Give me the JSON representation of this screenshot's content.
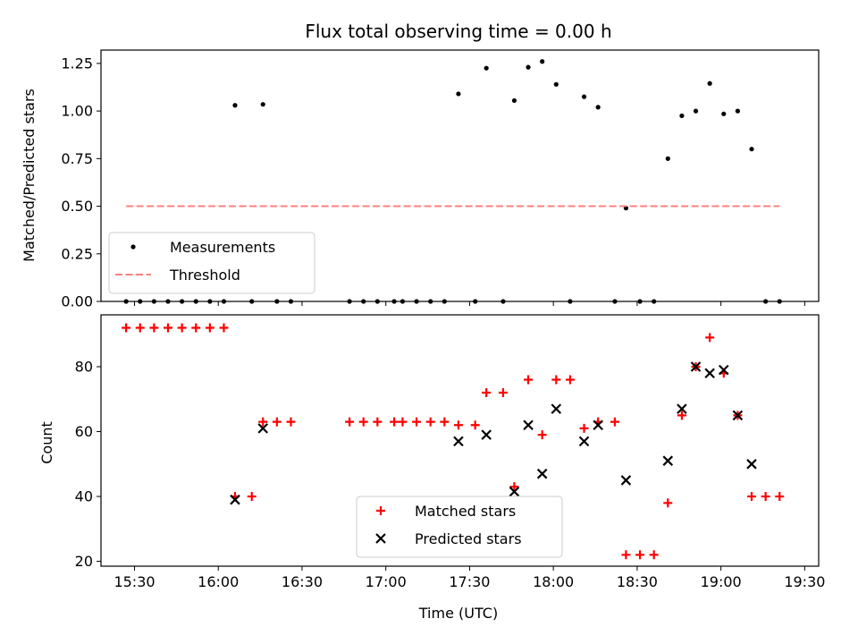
{
  "chart_data": [
    {
      "type": "scatter",
      "title": "Flux total observing time = 0.00 h",
      "ylabel": "Matched/Predicted stars",
      "xlabel": "",
      "ylim": [
        0,
        1.32
      ],
      "yticks": [
        "0.00",
        "0.25",
        "0.50",
        "0.75",
        "1.00",
        "1.25"
      ],
      "grid": false,
      "legend": {
        "placement": "lower-left",
        "entries": [
          "Measurements",
          "Threshold"
        ]
      },
      "series": [
        {
          "name": "Measurements",
          "marker": "dot",
          "color": "#000000",
          "points": [
            [
              "15:27",
              0
            ],
            [
              "15:32",
              0
            ],
            [
              "15:37",
              0
            ],
            [
              "15:42",
              0
            ],
            [
              "15:47",
              0
            ],
            [
              "15:52",
              0
            ],
            [
              "15:57",
              0
            ],
            [
              "16:02",
              0
            ],
            [
              "16:06",
              1.03
            ],
            [
              "16:12",
              0
            ],
            [
              "16:16",
              1.035
            ],
            [
              "16:21",
              0
            ],
            [
              "16:26",
              0
            ],
            [
              "16:47",
              0
            ],
            [
              "16:52",
              0
            ],
            [
              "16:57",
              0
            ],
            [
              "17:03",
              0
            ],
            [
              "17:06",
              0
            ],
            [
              "17:11",
              0
            ],
            [
              "17:16",
              0
            ],
            [
              "17:21",
              0
            ],
            [
              "17:26",
              1.09
            ],
            [
              "17:32",
              0
            ],
            [
              "17:36",
              1.225
            ],
            [
              "17:42",
              0
            ],
            [
              "17:46",
              1.055
            ],
            [
              "17:51",
              1.23
            ],
            [
              "17:56",
              1.26
            ],
            [
              "18:01",
              1.14
            ],
            [
              "18:06",
              0
            ],
            [
              "18:11",
              1.075
            ],
            [
              "18:16",
              1.02
            ],
            [
              "18:22",
              0
            ],
            [
              "18:26",
              0.49
            ],
            [
              "18:31",
              0
            ],
            [
              "18:36",
              0
            ],
            [
              "18:41",
              0.75
            ],
            [
              "18:46",
              0.975
            ],
            [
              "18:51",
              1.0
            ],
            [
              "18:56",
              1.145
            ],
            [
              "19:01",
              0.985
            ],
            [
              "19:06",
              1.0
            ],
            [
              "19:11",
              0.8
            ],
            [
              "19:16",
              0
            ],
            [
              "19:21",
              0
            ]
          ]
        },
        {
          "name": "Threshold",
          "style": "dashed",
          "color": "#ff7f7f",
          "points": [
            [
              "15:27",
              0.5
            ],
            [
              "19:21",
              0.5
            ]
          ]
        }
      ]
    },
    {
      "type": "scatter",
      "title": "",
      "ylabel": "Count",
      "xlabel": "Time (UTC)",
      "ylim": [
        18.5,
        96
      ],
      "yticks": [
        "20",
        "40",
        "60",
        "80"
      ],
      "xticks": [
        "15:30",
        "16:00",
        "16:30",
        "17:00",
        "17:30",
        "18:00",
        "18:30",
        "19:00",
        "19:30"
      ],
      "xlim": [
        "15:18",
        "19:35"
      ],
      "grid": false,
      "legend": {
        "placement": "lower-center",
        "entries": [
          "Matched stars",
          "Predicted stars"
        ]
      },
      "series": [
        {
          "name": "Matched stars",
          "marker": "plus",
          "color": "#ff0000",
          "points": [
            [
              "15:27",
              92
            ],
            [
              "15:32",
              92
            ],
            [
              "15:37",
              92
            ],
            [
              "15:42",
              92
            ],
            [
              "15:47",
              92
            ],
            [
              "15:52",
              92
            ],
            [
              "15:57",
              92
            ],
            [
              "16:02",
              92
            ],
            [
              "16:06",
              40
            ],
            [
              "16:12",
              40
            ],
            [
              "16:16",
              63
            ],
            [
              "16:21",
              63
            ],
            [
              "16:26",
              63
            ],
            [
              "16:47",
              63
            ],
            [
              "16:52",
              63
            ],
            [
              "16:57",
              63
            ],
            [
              "17:03",
              63
            ],
            [
              "17:06",
              63
            ],
            [
              "17:11",
              63
            ],
            [
              "17:16",
              63
            ],
            [
              "17:21",
              63
            ],
            [
              "17:26",
              62
            ],
            [
              "17:32",
              62
            ],
            [
              "17:36",
              72
            ],
            [
              "17:42",
              72
            ],
            [
              "17:46",
              43
            ],
            [
              "17:51",
              76
            ],
            [
              "17:56",
              59
            ],
            [
              "18:01",
              76
            ],
            [
              "18:06",
              76
            ],
            [
              "18:11",
              61
            ],
            [
              "18:16",
              63
            ],
            [
              "18:22",
              63
            ],
            [
              "18:26",
              22
            ],
            [
              "18:31",
              22
            ],
            [
              "18:36",
              22
            ],
            [
              "18:41",
              38
            ],
            [
              "18:46",
              65
            ],
            [
              "18:51",
              80
            ],
            [
              "18:56",
              89
            ],
            [
              "19:01",
              78
            ],
            [
              "19:06",
              65
            ],
            [
              "19:11",
              40
            ],
            [
              "19:16",
              40
            ],
            [
              "19:21",
              40
            ]
          ]
        },
        {
          "name": "Predicted stars",
          "marker": "x",
          "color": "#000000",
          "points": [
            [
              "16:06",
              39
            ],
            [
              "16:16",
              61
            ],
            [
              "17:26",
              57
            ],
            [
              "17:36",
              59
            ],
            [
              "17:46",
              41.5
            ],
            [
              "17:51",
              62
            ],
            [
              "17:56",
              47
            ],
            [
              "18:01",
              67
            ],
            [
              "18:11",
              57
            ],
            [
              "18:16",
              62
            ],
            [
              "18:26",
              45
            ],
            [
              "18:41",
              51
            ],
            [
              "18:46",
              67
            ],
            [
              "18:51",
              80
            ],
            [
              "18:56",
              78
            ],
            [
              "19:01",
              79
            ],
            [
              "19:06",
              65
            ],
            [
              "19:11",
              50
            ]
          ]
        }
      ]
    }
  ]
}
